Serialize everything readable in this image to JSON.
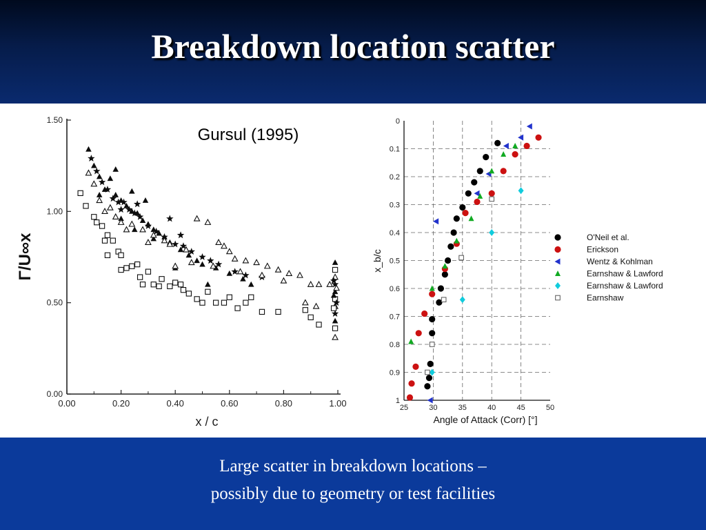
{
  "slide": {
    "title": "Breakdown location scatter",
    "footer_lines": [
      "Large scatter in breakdown locations –",
      "possibly due to geometry or test facilities"
    ]
  },
  "chart_data": [
    {
      "type": "scatter",
      "annotation": "Gursul (1995)",
      "xlabel": "x / c",
      "ylabel": "Γ/U∞x",
      "xlim": [
        0,
        1.0
      ],
      "ylim": [
        0,
        1.5
      ],
      "xticks": [
        "0.00",
        "0.20",
        "0.40",
        "0.60",
        "0.80",
        "1.00"
      ],
      "yticks": [
        "0.00",
        "0.50",
        "1.00",
        "1.50"
      ],
      "grid": false,
      "series": [
        {
          "marker": "filled-triangle",
          "points": [
            [
              0.08,
              1.34
            ],
            [
              0.1,
              1.25
            ],
            [
              0.12,
              1.19
            ],
            [
              0.14,
              1.12
            ],
            [
              0.16,
              1.18
            ],
            [
              0.18,
              1.09
            ],
            [
              0.2,
              1.06
            ],
            [
              0.22,
              1.03
            ],
            [
              0.24,
              1.0
            ],
            [
              0.26,
              0.99
            ],
            [
              0.28,
              0.95
            ],
            [
              0.3,
              0.93
            ],
            [
              0.32,
              0.9
            ],
            [
              0.34,
              0.88
            ],
            [
              0.36,
              0.86
            ],
            [
              0.38,
              0.83
            ],
            [
              0.42,
              0.79
            ],
            [
              0.45,
              0.76
            ],
            [
              0.48,
              0.73
            ],
            [
              0.5,
              0.71
            ],
            [
              0.55,
              0.69
            ],
            [
              0.6,
              0.66
            ],
            [
              0.65,
              0.63
            ],
            [
              0.68,
              0.6
            ],
            [
              0.12,
              1.09
            ],
            [
              0.2,
              0.96
            ],
            [
              0.25,
              0.9
            ],
            [
              0.32,
              0.85
            ],
            [
              0.4,
              0.69
            ],
            [
              0.52,
              0.6
            ],
            [
              0.18,
              1.23
            ],
            [
              0.24,
              1.11
            ],
            [
              0.29,
              1.06
            ]
          ]
        },
        {
          "marker": "filled-star",
          "points": [
            [
              0.09,
              1.29
            ],
            [
              0.11,
              1.22
            ],
            [
              0.13,
              1.16
            ],
            [
              0.15,
              1.12
            ],
            [
              0.17,
              1.07
            ],
            [
              0.19,
              1.05
            ],
            [
              0.21,
              1.05
            ],
            [
              0.23,
              1.01
            ],
            [
              0.25,
              0.99
            ],
            [
              0.27,
              0.97
            ],
            [
              0.3,
              0.92
            ],
            [
              0.33,
              0.89
            ],
            [
              0.36,
              0.86
            ],
            [
              0.4,
              0.82
            ],
            [
              0.43,
              0.81
            ],
            [
              0.46,
              0.78
            ],
            [
              0.5,
              0.75
            ],
            [
              0.53,
              0.73
            ],
            [
              0.56,
              0.71
            ],
            [
              0.62,
              0.67
            ],
            [
              0.66,
              0.65
            ],
            [
              0.72,
              0.64
            ],
            [
              0.38,
              0.96
            ],
            [
              0.42,
              0.87
            ],
            [
              0.2,
              1.01
            ],
            [
              0.26,
              1.04
            ]
          ]
        },
        {
          "marker": "open-triangle",
          "points": [
            [
              0.08,
              1.21
            ],
            [
              0.1,
              1.15
            ],
            [
              0.12,
              1.06
            ],
            [
              0.14,
              1.0
            ],
            [
              0.16,
              1.02
            ],
            [
              0.18,
              0.97
            ],
            [
              0.2,
              0.94
            ],
            [
              0.24,
              0.93
            ],
            [
              0.28,
              0.9
            ],
            [
              0.32,
              0.87
            ],
            [
              0.36,
              0.84
            ],
            [
              0.38,
              0.82
            ],
            [
              0.44,
              0.79
            ],
            [
              0.48,
              0.96
            ],
            [
              0.52,
              0.94
            ],
            [
              0.56,
              0.83
            ],
            [
              0.58,
              0.81
            ],
            [
              0.6,
              0.78
            ],
            [
              0.62,
              0.74
            ],
            [
              0.66,
              0.73
            ],
            [
              0.7,
              0.72
            ],
            [
              0.74,
              0.7
            ],
            [
              0.78,
              0.68
            ],
            [
              0.82,
              0.66
            ],
            [
              0.86,
              0.65
            ],
            [
              0.9,
              0.6
            ],
            [
              0.93,
              0.6
            ],
            [
              0.97,
              0.6
            ],
            [
              0.22,
              0.9
            ],
            [
              0.3,
              0.83
            ],
            [
              0.4,
              0.7
            ],
            [
              0.46,
              0.72
            ],
            [
              0.54,
              0.7
            ],
            [
              0.64,
              0.67
            ],
            [
              0.72,
              0.65
            ],
            [
              0.8,
              0.62
            ],
            [
              0.88,
              0.5
            ],
            [
              0.92,
              0.48
            ]
          ]
        },
        {
          "marker": "open-square",
          "points": [
            [
              0.05,
              1.1
            ],
            [
              0.07,
              1.03
            ],
            [
              0.1,
              0.97
            ],
            [
              0.11,
              0.94
            ],
            [
              0.13,
              0.92
            ],
            [
              0.14,
              0.84
            ],
            [
              0.15,
              0.87
            ],
            [
              0.17,
              0.84
            ],
            [
              0.19,
              0.78
            ],
            [
              0.2,
              0.76
            ],
            [
              0.22,
              0.69
            ],
            [
              0.24,
              0.7
            ],
            [
              0.26,
              0.71
            ],
            [
              0.27,
              0.64
            ],
            [
              0.3,
              0.67
            ],
            [
              0.32,
              0.6
            ],
            [
              0.35,
              0.63
            ],
            [
              0.38,
              0.59
            ],
            [
              0.4,
              0.61
            ],
            [
              0.43,
              0.57
            ],
            [
              0.45,
              0.55
            ],
            [
              0.48,
              0.52
            ],
            [
              0.5,
              0.5
            ],
            [
              0.55,
              0.5
            ],
            [
              0.58,
              0.5
            ],
            [
              0.63,
              0.47
            ],
            [
              0.68,
              0.53
            ],
            [
              0.72,
              0.45
            ],
            [
              0.78,
              0.45
            ],
            [
              0.88,
              0.46
            ],
            [
              0.9,
              0.42
            ],
            [
              0.93,
              0.38
            ],
            [
              0.15,
              0.76
            ],
            [
              0.2,
              0.68
            ],
            [
              0.28,
              0.6
            ],
            [
              0.34,
              0.59
            ],
            [
              0.42,
              0.6
            ],
            [
              0.52,
              0.56
            ],
            [
              0.6,
              0.53
            ],
            [
              0.66,
              0.5
            ]
          ]
        },
        {
          "marker": "mixed",
          "points": [
            [
              0.99,
              0.72
            ],
            [
              0.99,
              0.68
            ],
            [
              0.99,
              0.64
            ],
            [
              0.99,
              0.6
            ],
            [
              0.99,
              0.56
            ],
            [
              0.99,
              0.52
            ],
            [
              0.99,
              0.48
            ],
            [
              0.99,
              0.44
            ],
            [
              0.99,
              0.4
            ],
            [
              0.99,
              0.36
            ],
            [
              0.99,
              0.31
            ],
            [
              0.985,
              0.62
            ],
            [
              0.985,
              0.54
            ],
            [
              0.985,
              0.47
            ],
            [
              0.995,
              0.58
            ],
            [
              0.995,
              0.5
            ]
          ]
        }
      ]
    },
    {
      "type": "scatter",
      "xlabel": "Angle of Attack (Corr) [°]",
      "ylabel": "x_b/c",
      "xlim": [
        25,
        50
      ],
      "ylim": [
        0,
        1
      ],
      "y_inverted": true,
      "xticks": [
        "25",
        "30",
        "35",
        "40",
        "45",
        "50"
      ],
      "yticks": [
        "0",
        "0.1",
        "0.2",
        "0.3",
        "0.4",
        "0.5",
        "0.6",
        "0.7",
        "0.8",
        "0.9",
        "1"
      ],
      "grid": true,
      "legend_position": "right",
      "series": [
        {
          "name": "O'Neil et al.",
          "color": "#000000",
          "marker": "circle",
          "points": [
            [
              29,
              0.95
            ],
            [
              29.3,
              0.92
            ],
            [
              29.5,
              0.87
            ],
            [
              29.8,
              0.76
            ],
            [
              29.8,
              0.71
            ],
            [
              31,
              0.65
            ],
            [
              31.3,
              0.6
            ],
            [
              32,
              0.55
            ],
            [
              32.5,
              0.5
            ],
            [
              33,
              0.45
            ],
            [
              33.5,
              0.4
            ],
            [
              34,
              0.35
            ],
            [
              35,
              0.31
            ],
            [
              36,
              0.26
            ],
            [
              37,
              0.22
            ],
            [
              38,
              0.18
            ],
            [
              39,
              0.13
            ],
            [
              41,
              0.08
            ]
          ]
        },
        {
          "name": "Erickson",
          "color": "#cc1111",
          "marker": "circle",
          "points": [
            [
              26,
              0.99
            ],
            [
              26.3,
              0.94
            ],
            [
              27,
              0.88
            ],
            [
              27.5,
              0.76
            ],
            [
              28.5,
              0.69
            ],
            [
              29.8,
              0.62
            ],
            [
              32,
              0.53
            ],
            [
              34,
              0.44
            ],
            [
              35.5,
              0.33
            ],
            [
              37.5,
              0.29
            ],
            [
              40,
              0.26
            ],
            [
              42,
              0.18
            ],
            [
              44,
              0.12
            ],
            [
              46,
              0.09
            ],
            [
              48,
              0.06
            ]
          ]
        },
        {
          "name": "Wentz & Kohlman",
          "color": "#2233cc",
          "marker": "triangle-left",
          "points": [
            [
              29.5,
              1.0
            ],
            [
              30.5,
              0.36
            ],
            [
              37.5,
              0.26
            ],
            [
              39.5,
              0.19
            ],
            [
              42.5,
              0.09
            ],
            [
              45,
              0.06
            ],
            [
              46.5,
              0.02
            ]
          ]
        },
        {
          "name": "Earnshaw & Lawford",
          "color": "#11aa22",
          "marker": "triangle-up",
          "points": [
            [
              26.2,
              0.79
            ],
            [
              29.8,
              0.6
            ],
            [
              32,
              0.52
            ],
            [
              34,
              0.43
            ],
            [
              36.5,
              0.35
            ],
            [
              38,
              0.27
            ],
            [
              40,
              0.18
            ],
            [
              42,
              0.12
            ],
            [
              44,
              0.09
            ]
          ]
        },
        {
          "name": "Earnshaw & Lawford",
          "color": "#11ccdd",
          "marker": "diamond",
          "points": [
            [
              29.8,
              0.9
            ],
            [
              35,
              0.64
            ],
            [
              40,
              0.4
            ],
            [
              45,
              0.25
            ]
          ]
        },
        {
          "name": "Earnshaw",
          "color": "#555555",
          "marker": "open-square",
          "points": [
            [
              29,
              0.9
            ],
            [
              29.8,
              0.8
            ],
            [
              31.8,
              0.64
            ],
            [
              34.8,
              0.49
            ],
            [
              40,
              0.28
            ]
          ]
        }
      ]
    }
  ]
}
